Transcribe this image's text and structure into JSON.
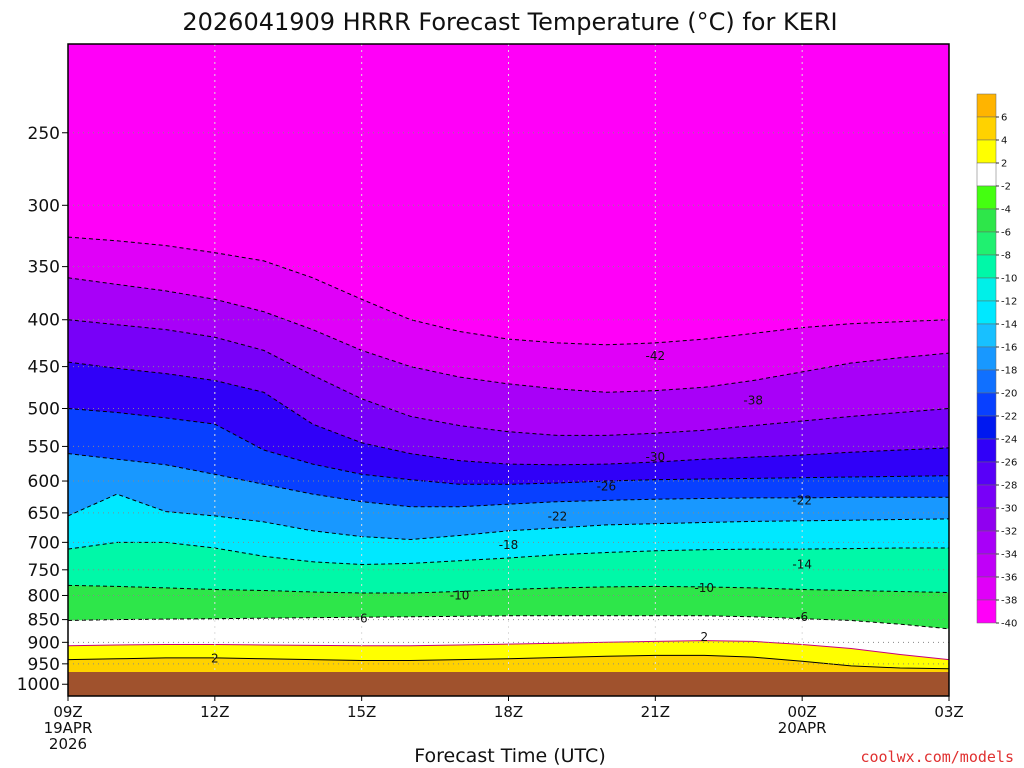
{
  "chart_data": {
    "type": "filled-contour",
    "title": "2026041909 HRRR Forecast Temperature (°C) for KERI",
    "xlabel": "Forecast Time (UTC)",
    "ylabel": "",
    "credit": "coolwx.com/models",
    "y_scale": "log-pressure",
    "ylim": [
      1030,
      200
    ],
    "y_ticks": [
      250,
      300,
      350,
      400,
      450,
      500,
      550,
      600,
      650,
      700,
      750,
      800,
      850,
      900,
      950,
      1000
    ],
    "x_ticks": [
      {
        "h": 0,
        "lines": [
          "09Z",
          "19APR",
          "2026"
        ]
      },
      {
        "h": 3,
        "lines": [
          "12Z"
        ]
      },
      {
        "h": 6,
        "lines": [
          "15Z"
        ]
      },
      {
        "h": 9,
        "lines": [
          "18Z"
        ]
      },
      {
        "h": 12,
        "lines": [
          "21Z"
        ]
      },
      {
        "h": 15,
        "lines": [
          "00Z",
          "20APR"
        ]
      },
      {
        "h": 18,
        "lines": [
          "03Z"
        ]
      }
    ],
    "xlim": [
      0,
      18
    ],
    "grid": true,
    "contour_interval": 4,
    "colorbar": {
      "labels": [
        "6",
        "4",
        "2",
        "-2",
        "-4",
        "-6",
        "-8",
        "-10",
        "-12",
        "-14",
        "-16",
        "-18",
        "-20",
        "-22",
        "-24",
        "-26",
        "-28",
        "-30",
        "-32",
        "-34",
        "-36",
        "-38",
        "-40"
      ],
      "colors": [
        "#ffb400",
        "#ffd200",
        "#ffff00",
        "#ffffff",
        "#44ff10",
        "#2ee64a",
        "#20f070",
        "#00f8a8",
        "#00f0e8",
        "#00e8ff",
        "#18c0ff",
        "#1898ff",
        "#1070ff",
        "#0840ff",
        "#0018f0",
        "#3000f8",
        "#5800f8",
        "#7800f8",
        "#9000f0",
        "#a800f8",
        "#c000f8",
        "#e000f8",
        "#ff00f8"
      ]
    },
    "isotherms": [
      {
        "t": 6,
        "pressure": [
          1030,
          1030,
          1030,
          1030,
          1030,
          1030,
          1030,
          1030,
          1030,
          1030,
          1030,
          1030,
          1030,
          1030,
          1030,
          1030,
          1030,
          1030,
          1030
        ]
      },
      {
        "t": 2,
        "pressure": [
          940,
          938,
          936,
          936,
          938,
          940,
          942,
          942,
          940,
          938,
          935,
          932,
          930,
          930,
          934,
          944,
          955,
          960,
          962
        ]
      },
      {
        "t": -2,
        "pressure": [
          908,
          906,
          905,
          905,
          906,
          907,
          908,
          908,
          906,
          904,
          902,
          900,
          898,
          896,
          898,
          905,
          914,
          928,
          940
        ]
      },
      {
        "t": -6,
        "pressure": [
          852,
          850,
          849,
          848,
          847,
          846,
          845,
          844,
          843,
          842,
          842,
          842,
          842,
          842,
          844,
          848,
          852,
          860,
          870
        ]
      },
      {
        "t": -10,
        "pressure": [
          780,
          782,
          785,
          788,
          790,
          793,
          795,
          795,
          792,
          788,
          785,
          783,
          782,
          783,
          785,
          788,
          790,
          792,
          794
        ]
      },
      {
        "t": -14,
        "pressure": [
          712,
          700,
          700,
          710,
          725,
          735,
          740,
          738,
          733,
          728,
          722,
          718,
          715,
          713,
          712,
          712,
          711,
          710,
          710
        ]
      },
      {
        "t": -18,
        "pressure": [
          655,
          620,
          648,
          655,
          665,
          680,
          690,
          695,
          688,
          680,
          675,
          670,
          668,
          666,
          664,
          663,
          662,
          661,
          660
        ]
      },
      {
        "t": -22,
        "pressure": [
          560,
          568,
          576,
          590,
          605,
          620,
          632,
          640,
          640,
          636,
          632,
          630,
          628,
          627,
          626,
          626,
          625,
          625,
          625
        ]
      },
      {
        "t": -26,
        "pressure": [
          500,
          505,
          512,
          520,
          555,
          575,
          590,
          598,
          605,
          605,
          603,
          600,
          598,
          597,
          596,
          595,
          594,
          593,
          592
        ]
      },
      {
        "t": -30,
        "pressure": [
          445,
          452,
          458,
          466,
          480,
          520,
          545,
          560,
          570,
          575,
          576,
          575,
          572,
          568,
          565,
          562,
          558,
          555,
          552
        ]
      },
      {
        "t": -34,
        "pressure": [
          400,
          405,
          410,
          418,
          432,
          460,
          488,
          510,
          522,
          530,
          535,
          535,
          532,
          528,
          522,
          516,
          510,
          505,
          500
        ]
      },
      {
        "t": -38,
        "pressure": [
          360,
          366,
          372,
          380,
          392,
          410,
          432,
          450,
          462,
          470,
          476,
          480,
          478,
          474,
          466,
          456,
          446,
          440,
          435
        ]
      },
      {
        "t": -42,
        "pressure": [
          325,
          328,
          332,
          338,
          345,
          360,
          380,
          400,
          412,
          420,
          424,
          426,
          424,
          420,
          414,
          408,
          404,
          402,
          400
        ]
      }
    ],
    "contour_labels": [
      {
        "text": "2",
        "h": 3.0,
        "p": 937
      },
      {
        "text": "2",
        "h": 13.0,
        "p": 888
      },
      {
        "text": "-6",
        "h": 6.0,
        "p": 848
      },
      {
        "text": "-6",
        "h": 15.0,
        "p": 845
      },
      {
        "text": "-10",
        "h": 8.0,
        "p": 800
      },
      {
        "text": "-10",
        "h": 13.0,
        "p": 785
      },
      {
        "text": "-14",
        "h": 15.0,
        "p": 740
      },
      {
        "text": "-18",
        "h": 9.0,
        "p": 705
      },
      {
        "text": "-22",
        "h": 10.0,
        "p": 656
      },
      {
        "text": "-22",
        "h": 15.0,
        "p": 630
      },
      {
        "text": "-26",
        "h": 11.0,
        "p": 608
      },
      {
        "text": "-30",
        "h": 12.0,
        "p": 565
      },
      {
        "text": "-38",
        "h": 14.0,
        "p": 490
      },
      {
        "text": "-42",
        "h": 12.0,
        "p": 438
      }
    ]
  }
}
